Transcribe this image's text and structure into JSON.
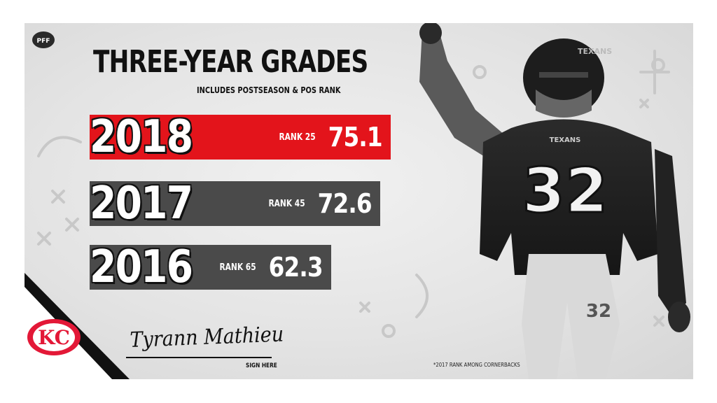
{
  "header": {
    "brand_logo_text": "PFF",
    "title": "THREE-YEAR GRADES",
    "subtitle": "INCLUDES POSTSEASON & POS RANK"
  },
  "grades": [
    {
      "year": "2018",
      "rank_label": "RANK 25",
      "grade": "75.1",
      "value": 75.1,
      "color": "#e3141b"
    },
    {
      "year": "2017",
      "rank_label": "RANK 45",
      "grade": "72.6",
      "value": 72.6,
      "color": "#4a4a4a"
    },
    {
      "year": "2016",
      "rank_label": "RANK 65",
      "grade": "62.3",
      "value": 62.3,
      "color": "#4a4a4a"
    }
  ],
  "signature": {
    "name": "Tyrann Mathieu",
    "caption": "SIGN HERE"
  },
  "footnote": "*2017 RANK AMONG CORNERBACKS",
  "player": {
    "jersey_number": "32",
    "team_wordmark": "TEXANS"
  },
  "team_logo": {
    "text": "KC",
    "color": "#e31837"
  },
  "colors": {
    "accent": "#e3141b",
    "bar_gray": "#4a4a4a",
    "background": "#e6e6e6"
  }
}
